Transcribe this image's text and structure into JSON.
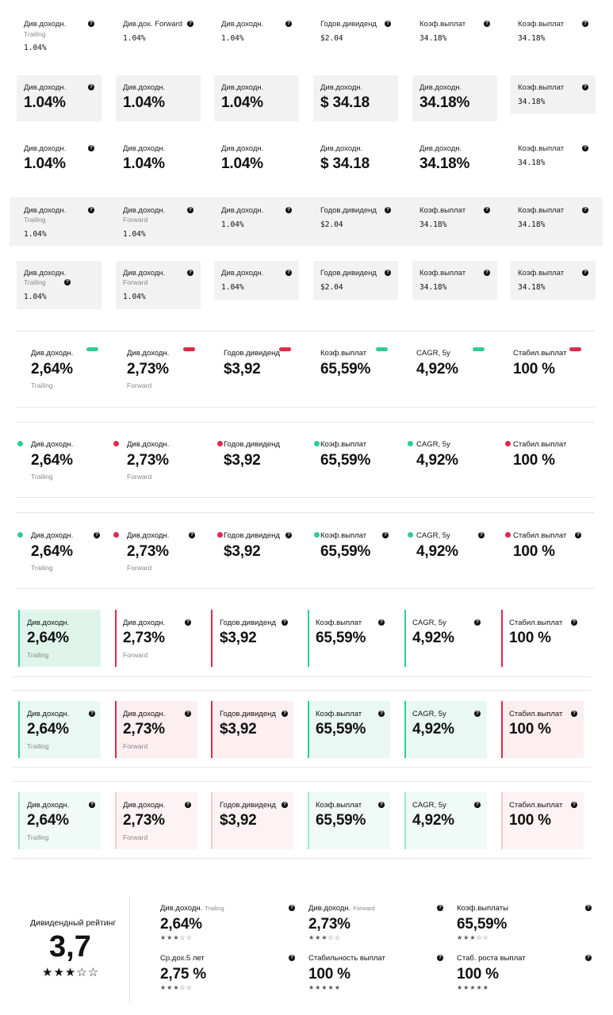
{
  "row1": [
    {
      "label": "Див.доходн.",
      "sub": "Trailing",
      "value": "1.04%"
    },
    {
      "label": "Див.дох. Forward",
      "value": "1.04%"
    },
    {
      "label": "Див.доходн.",
      "value": "1.04%"
    },
    {
      "label": "Годов.дивиденд",
      "value": "$2.04"
    },
    {
      "label": "Коэф.выплат",
      "value": "34.18%"
    },
    {
      "label": "Коэф.выплат",
      "value": "34.18%"
    }
  ],
  "row2": [
    {
      "label": "Див.доходн.",
      "value": "1.04%"
    },
    {
      "label": "Див.доходн.",
      "value": "1.04%"
    },
    {
      "label": "Див.доходн.",
      "value": "1.04%"
    },
    {
      "label": "Див.доходн.",
      "value": "$ 34.18"
    },
    {
      "label": "Див.доходн.",
      "value": "34.18%"
    },
    {
      "label": "Коэф.выплат",
      "value": "34.18%"
    }
  ],
  "row3": [
    {
      "label": "Див.доходн.",
      "value": "1.04%"
    },
    {
      "label": "Див.доходн.",
      "value": "1.04%"
    },
    {
      "label": "Див.доходн.",
      "value": "1.04%"
    },
    {
      "label": "Див.доходн.",
      "value": "$ 34.18"
    },
    {
      "label": "Див.доходн.",
      "value": "34.18%"
    },
    {
      "label": "Коэф.выплат",
      "value": "34.18%"
    }
  ],
  "row4": [
    {
      "label": "Див.доходн.",
      "sub": "Trailing",
      "value": "1.04%"
    },
    {
      "label": "Див.доходн.",
      "sub": "Forward",
      "value": "1.04%"
    },
    {
      "label": "Див.доходн.",
      "value": "1.04%"
    },
    {
      "label": "Годов.дивиденд",
      "value": "$2.04"
    },
    {
      "label": "Коэф.выплат",
      "value": "34.18%"
    },
    {
      "label": "Коэф.выплат",
      "value": "34.18%"
    }
  ],
  "row5": [
    {
      "label": "Див.доходн.",
      "sub": "Trailing",
      "value": "1.04%"
    },
    {
      "label": "Див.доходн.",
      "sub": "Forward",
      "value": "1.04%"
    },
    {
      "label": "Див.доходн.",
      "value": "1.04%"
    },
    {
      "label": "Годов.дивиденд",
      "value": "$2.04"
    },
    {
      "label": "Коэф.выплат",
      "value": "34.18%"
    },
    {
      "label": "Коэф.выплат",
      "value": "34.18%"
    }
  ],
  "metrics": [
    {
      "label": "Див.доходн.",
      "value": "2,64%",
      "sub": "Trailing",
      "status": "green"
    },
    {
      "label": "Див.доходн.",
      "value": "2,73%",
      "sub": "Forward",
      "status": "red"
    },
    {
      "label": "Годов.дивиденд",
      "value": "$3,92",
      "status": "red"
    },
    {
      "label": "Коэф.выплат",
      "value": "65,59%",
      "status": "green"
    },
    {
      "label": "CAGR, 5y",
      "value": "4,92%",
      "status": "green"
    },
    {
      "label": "Стабил.выплат",
      "value": "100 %",
      "status": "red"
    }
  ],
  "rating": {
    "title": "Дивидендный рейтинг",
    "score": "3,7",
    "stars": "★★★☆☆",
    "items": [
      {
        "label": "Див.доходн.",
        "sub": "Trailing",
        "value": "2,64%",
        "stars": "★★★☆☆"
      },
      {
        "label": "Див.доходн.",
        "sub": "Forward",
        "value": "2,73%",
        "stars": "★★★☆☆"
      },
      {
        "label": "Коэф.выплаты",
        "value": "65,59%",
        "stars": "★★★☆☆"
      },
      {
        "label": "Ср.дох.5 лет",
        "value": "2,75 %",
        "stars": "★★★☆☆"
      },
      {
        "label": "Стабильность выплат",
        "value": "100 %",
        "stars": "★★★★★"
      },
      {
        "label": "Стаб. роста выплат",
        "value": "100 %",
        "stars": "★★★★★"
      }
    ]
  },
  "colors": {
    "green": "#2fcb9a",
    "red": "#e0284a",
    "gray_bg": "#f2f2f2",
    "light_green": "#dff5ec",
    "light_red": "#fdeef0"
  }
}
